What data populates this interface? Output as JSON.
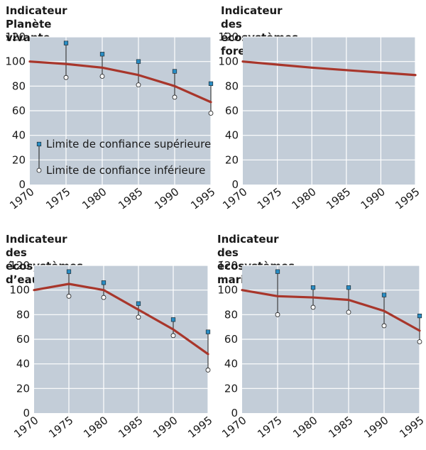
{
  "chart_data": [
    {
      "type": "line",
      "title": "Indicateur Planète vivante",
      "x": [
        1970,
        1975,
        1980,
        1985,
        1990,
        1995
      ],
      "xlim": [
        1970,
        1995
      ],
      "ylim": [
        0,
        120
      ],
      "yticks": [
        0,
        20,
        40,
        60,
        80,
        100,
        120
      ],
      "grid": true,
      "series": [
        {
          "values": [
            100,
            98,
            95,
            89,
            80,
            67
          ]
        }
      ],
      "confidence": {
        "x": [
          1975,
          1980,
          1985,
          1990,
          1995
        ],
        "upper": [
          115,
          106,
          100,
          92,
          82
        ],
        "lower": [
          87,
          88,
          81,
          71,
          58
        ]
      },
      "legend": {
        "upper_label": "Limite de confiance supérieure",
        "lower_label": "Limite de confiance inférieure"
      }
    },
    {
      "type": "line",
      "title": "Indicateur des écosystèmes\nforestiers",
      "x": [
        1970,
        1975,
        1980,
        1985,
        1990,
        1995
      ],
      "xlim": [
        1970,
        1995
      ],
      "ylim": [
        0,
        120
      ],
      "yticks": [
        0,
        20,
        40,
        60,
        80,
        100,
        120
      ],
      "grid": true,
      "series": [
        {
          "values": [
            100,
            97.5,
            95,
            93,
            91,
            89
          ]
        }
      ]
    },
    {
      "type": "line",
      "title": "Indicateur des écosystèmes\nd’eau douce",
      "x": [
        1970,
        1975,
        1980,
        1985,
        1990,
        1995
      ],
      "xlim": [
        1970,
        1995
      ],
      "ylim": [
        0,
        120
      ],
      "yticks": [
        0,
        20,
        40,
        60,
        80,
        100,
        120
      ],
      "grid": true,
      "series": [
        {
          "values": [
            100,
            105,
            100,
            84,
            68,
            48
          ]
        }
      ],
      "confidence": {
        "x": [
          1975,
          1980,
          1985,
          1990,
          1995
        ],
        "upper": [
          115,
          106,
          89,
          76,
          66
        ],
        "lower": [
          95,
          94,
          78,
          63,
          35
        ]
      }
    },
    {
      "type": "line",
      "title": "Indicateur des écosystèmes marins",
      "x": [
        1970,
        1975,
        1980,
        1985,
        1990,
        1995
      ],
      "xlim": [
        1970,
        1995
      ],
      "ylim": [
        0,
        120
      ],
      "yticks": [
        0,
        20,
        40,
        60,
        80,
        100,
        120
      ],
      "grid": true,
      "series": [
        {
          "values": [
            100,
            95,
            94,
            92,
            83,
            67
          ]
        }
      ],
      "confidence": {
        "x": [
          1975,
          1980,
          1985,
          1990,
          1995
        ],
        "upper": [
          115,
          102,
          102,
          96,
          79
        ],
        "lower": [
          80,
          86,
          82,
          71,
          58
        ]
      }
    }
  ],
  "colors": {
    "plot_background": "#c3cdd8",
    "grid": "#ffffff",
    "line": "#a8362b",
    "upper_marker": "#2a8dc4",
    "lower_marker": "#ffffff",
    "error_bar": "#1a1a1a"
  }
}
